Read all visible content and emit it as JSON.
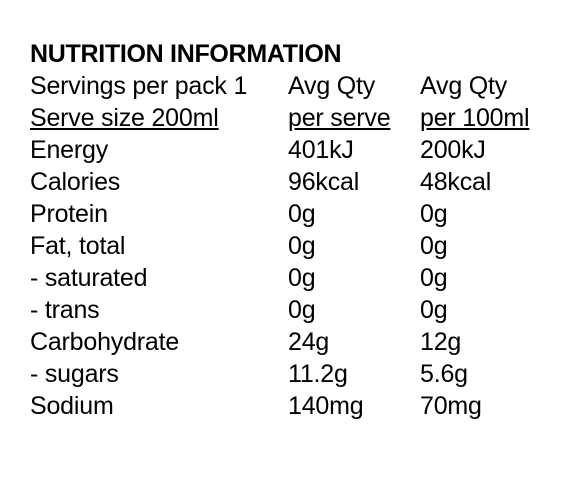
{
  "title": "NUTRITION INFORMATION",
  "header": {
    "row1": [
      "Servings per pack 1",
      "Avg Qty",
      "Avg Qty"
    ],
    "row2": [
      "Serve size 200ml",
      "per serve",
      "per 100ml"
    ]
  },
  "nutrients": [
    {
      "name": "Energy",
      "per_serve": "401kJ",
      "per_100": "200kJ"
    },
    {
      "name": "Calories",
      "per_serve": "96kcal",
      "per_100": "48kcal"
    },
    {
      "name": "Protein",
      "per_serve": "0g",
      "per_100": "0g"
    },
    {
      "name": "Fat, total",
      "per_serve": "0g",
      "per_100": "0g"
    },
    {
      "name": "- saturated",
      "per_serve": "0g",
      "per_100": "0g"
    },
    {
      "name": "- trans",
      "per_serve": "0g",
      "per_100": "0g"
    },
    {
      "name": "Carbohydrate",
      "per_serve": "24g",
      "per_100": "12g"
    },
    {
      "name": "- sugars",
      "per_serve": "11.2g",
      "per_100": "5.6g"
    },
    {
      "name": "Sodium",
      "per_serve": "140mg",
      "per_100": "70mg"
    }
  ]
}
